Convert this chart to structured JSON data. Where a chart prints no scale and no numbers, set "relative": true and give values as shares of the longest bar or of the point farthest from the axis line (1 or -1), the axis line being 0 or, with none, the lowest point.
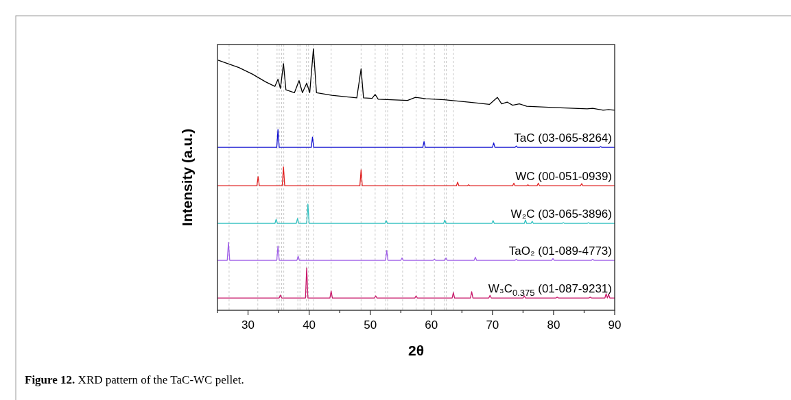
{
  "chart_data": {
    "type": "line",
    "relative": true,
    "xlabel": "2θ",
    "ylabel": "Intensity (a.u.)",
    "xlim": [
      25,
      90
    ],
    "xticks": [
      {
        "value": 25,
        "label": null
      },
      30,
      {
        "value": 35,
        "label": null
      },
      40,
      {
        "value": 45,
        "label": null
      },
      50,
      {
        "value": 55,
        "label": null
      },
      60,
      {
        "value": 65,
        "label": null
      },
      70,
      {
        "value": 75,
        "label": null
      },
      80,
      {
        "value": 85,
        "label": null
      },
      90
    ],
    "grid": false,
    "legend": false,
    "marker": "none",
    "line_style": "solid",
    "annotations": [
      "Figure 12. XRD pattern of the TaC-WC pellet."
    ],
    "ref_lines": [
      {
        "axis": "x",
        "value": 26.9,
        "color": "#b0b0b0",
        "line_style": "dashed"
      },
      {
        "axis": "x",
        "value": 31.6,
        "color": "#b0b0b0",
        "line_style": "dashed"
      },
      {
        "axis": "x",
        "value": 34.75,
        "color": "#b0b0b0",
        "line_style": "dashed"
      },
      {
        "axis": "x",
        "value": 35.1,
        "color": "#b0b0b0",
        "line_style": "dashed"
      },
      {
        "axis": "x",
        "value": 35.5,
        "color": "#b0b0b0",
        "line_style": "dashed"
      },
      {
        "axis": "x",
        "value": 35.85,
        "color": "#b0b0b0",
        "line_style": "dashed"
      },
      {
        "axis": "x",
        "value": 38.15,
        "color": "#b0b0b0",
        "line_style": "dashed"
      },
      {
        "axis": "x",
        "value": 38.5,
        "color": "#b0b0b0",
        "line_style": "dashed"
      },
      {
        "axis": "x",
        "value": 39.55,
        "color": "#b0b0b0",
        "line_style": "dashed"
      },
      {
        "axis": "x",
        "value": 39.9,
        "color": "#b0b0b0",
        "line_style": "dashed"
      },
      {
        "axis": "x",
        "value": 40.7,
        "color": "#b0b0b0",
        "line_style": "dashed"
      },
      {
        "axis": "x",
        "value": 43.6,
        "color": "#b0b0b0",
        "line_style": "dashed"
      },
      {
        "axis": "x",
        "value": 48.5,
        "color": "#b0b0b0",
        "line_style": "dashed"
      },
      {
        "axis": "x",
        "value": 50.8,
        "color": "#b0b0b0",
        "line_style": "dashed"
      },
      {
        "axis": "x",
        "value": 52.5,
        "color": "#b0b0b0",
        "line_style": "dashed"
      },
      {
        "axis": "x",
        "value": 52.85,
        "color": "#b0b0b0",
        "line_style": "dashed"
      },
      {
        "axis": "x",
        "value": 55.3,
        "color": "#b0b0b0",
        "line_style": "dashed"
      },
      {
        "axis": "x",
        "value": 57.5,
        "color": "#b0b0b0",
        "line_style": "dashed"
      },
      {
        "axis": "x",
        "value": 58.8,
        "color": "#b0b0b0",
        "line_style": "dashed"
      },
      {
        "axis": "x",
        "value": 60.5,
        "color": "#b0b0b0",
        "line_style": "dashed"
      },
      {
        "axis": "x",
        "value": 62.1,
        "color": "#b0b0b0",
        "line_style": "dashed"
      },
      {
        "axis": "x",
        "value": 62.45,
        "color": "#b0b0b0",
        "line_style": "dashed"
      },
      {
        "axis": "x",
        "value": 63.6,
        "color": "#b0b0b0",
        "line_style": "dashed"
      }
    ],
    "series": [
      {
        "color": "#000000",
        "x": [
          25.1,
          28.5,
          30.7,
          32.9,
          34.4,
          34.9,
          35.3,
          35.8,
          36.2,
          37.6,
          38.35,
          38.9,
          39.6,
          40.1,
          40.7,
          41.2,
          43.7,
          47.8,
          48.5,
          48.9,
          50.3,
          50.8,
          51.3,
          56.1,
          57.4,
          59.1,
          62.1,
          66.4,
          69.5,
          70.8,
          71.5,
          72.4,
          73.3,
          74.4,
          75.6,
          80.4,
          85.5,
          86.4,
          88.1,
          89.0,
          90
        ],
        "values": [
          0.956,
          0.928,
          0.903,
          0.873,
          0.856,
          0.883,
          0.848,
          0.943,
          0.843,
          0.832,
          0.878,
          0.832,
          0.868,
          0.832,
          1,
          0.832,
          0.822,
          0.812,
          0.923,
          0.812,
          0.81,
          0.825,
          0.807,
          0.802,
          0.814,
          0.809,
          0.805,
          0.795,
          0.787,
          0.814,
          0.789,
          0.796,
          0.784,
          0.789,
          0.78,
          0.775,
          0.77,
          0.772,
          0.765,
          0.767,
          0.765
        ]
      },
      {
        "name": "TaC (03-065-8264)",
        "color": "#1010d0",
        "x": [
          25,
          34.7,
          34.9,
          35.1,
          40.35,
          40.55,
          40.75,
          58.6,
          58.8,
          59.0,
          70.0,
          70.2,
          70.4,
          73.7,
          73.9,
          74.1,
          87.5,
          87.7,
          87.9,
          90
        ],
        "values": [
          0.623,
          0.623,
          0.691,
          0.623,
          0.623,
          0.662,
          0.623,
          0.623,
          0.645,
          0.623,
          0.623,
          0.64,
          0.623,
          0.623,
          0.628,
          0.623,
          0.623,
          0.626,
          0.623,
          0.623
        ]
      },
      {
        "name": "WC (00-051-0939)",
        "color": "#e02020",
        "x": [
          25,
          31.45,
          31.65,
          31.85,
          35.6,
          35.8,
          36.0,
          48.3,
          48.5,
          48.7,
          64.1,
          64.3,
          64.5,
          65.9,
          66.1,
          66.3,
          73.3,
          73.5,
          73.7,
          75.6,
          75.8,
          76.0,
          77.3,
          77.5,
          77.7,
          84.4,
          84.6,
          84.8,
          90
        ],
        "values": [
          0.476,
          0.476,
          0.511,
          0.476,
          0.476,
          0.548,
          0.476,
          0.476,
          0.537,
          0.476,
          0.476,
          0.49,
          0.476,
          0.476,
          0.48,
          0.476,
          0.476,
          0.486,
          0.476,
          0.476,
          0.48,
          0.476,
          0.476,
          0.486,
          0.476,
          0.476,
          0.484,
          0.476,
          0.476
        ]
      },
      {
        "name": "W₂C (03-065-3896)",
        "color": "#30c0c0",
        "x": [
          25,
          34.4,
          34.6,
          34.8,
          37.9,
          38.1,
          38.3,
          39.6,
          39.8,
          40.0,
          52.4,
          52.6,
          52.8,
          62.0,
          62.2,
          62.4,
          69.9,
          70.1,
          70.3,
          75.2,
          75.4,
          75.6,
          76.3,
          76.5,
          76.7,
          81.4,
          81.6,
          81.8,
          85.5,
          85.7,
          85.9,
          90
        ],
        "values": [
          0.332,
          0.332,
          0.348,
          0.332,
          0.332,
          0.351,
          0.332,
          0.332,
          0.406,
          0.332,
          0.332,
          0.343,
          0.332,
          0.332,
          0.345,
          0.332,
          0.332,
          0.343,
          0.332,
          0.332,
          0.345,
          0.332,
          0.332,
          0.34,
          0.332,
          0.332,
          0.335,
          0.332,
          0.332,
          0.335,
          0.332,
          0.332
        ]
      },
      {
        "name": "TaO₂ (01-089-4773)",
        "color": "#a060e8",
        "x": [
          25,
          26.6,
          26.8,
          27.0,
          34.7,
          34.9,
          35.1,
          38.0,
          38.2,
          38.4,
          52.5,
          52.7,
          52.9,
          55.0,
          55.2,
          55.4,
          60.3,
          60.5,
          60.7,
          62.2,
          62.4,
          62.6,
          67.0,
          67.2,
          67.4,
          73.7,
          73.9,
          74.1,
          79.7,
          79.9,
          80.1,
          86.2,
          86.4,
          86.6,
          90
        ],
        "values": [
          0.191,
          0.191,
          0.26,
          0.191,
          0.191,
          0.246,
          0.191,
          0.191,
          0.207,
          0.191,
          0.191,
          0.229,
          0.191,
          0.191,
          0.2,
          0.191,
          0.191,
          0.195,
          0.191,
          0.191,
          0.2,
          0.191,
          0.191,
          0.203,
          0.191,
          0.191,
          0.195,
          0.191,
          0.191,
          0.198,
          0.191,
          0.191,
          0.195,
          0.191,
          0.191
        ]
      },
      {
        "name": "W₃C$_{0.375}$ (01-087-9231)",
        "color": "#c8186a",
        "x": [
          25,
          35.1,
          35.3,
          35.5,
          39.4,
          39.6,
          39.8,
          43.4,
          43.6,
          43.8,
          50.7,
          50.9,
          51.1,
          57.3,
          57.5,
          57.7,
          63.4,
          63.6,
          63.8,
          66.4,
          66.6,
          66.8,
          69.4,
          69.6,
          69.8,
          75.0,
          75.2,
          75.4,
          80.4,
          80.6,
          80.8,
          85.8,
          86.0,
          86.2,
          88.4,
          88.6,
          88.8,
          89.0,
          89.2,
          90
        ],
        "values": [
          0.047,
          0.047,
          0.058,
          0.047,
          0.047,
          0.162,
          0.047,
          0.047,
          0.074,
          0.047,
          0.047,
          0.055,
          0.047,
          0.047,
          0.055,
          0.047,
          0.047,
          0.068,
          0.047,
          0.047,
          0.071,
          0.047,
          0.047,
          0.057,
          0.047,
          0.047,
          0.055,
          0.047,
          0.047,
          0.05,
          0.047,
          0.047,
          0.05,
          0.047,
          0.047,
          0.063,
          0.047,
          0.06,
          0.047,
          0.047
        ]
      }
    ]
  }
}
